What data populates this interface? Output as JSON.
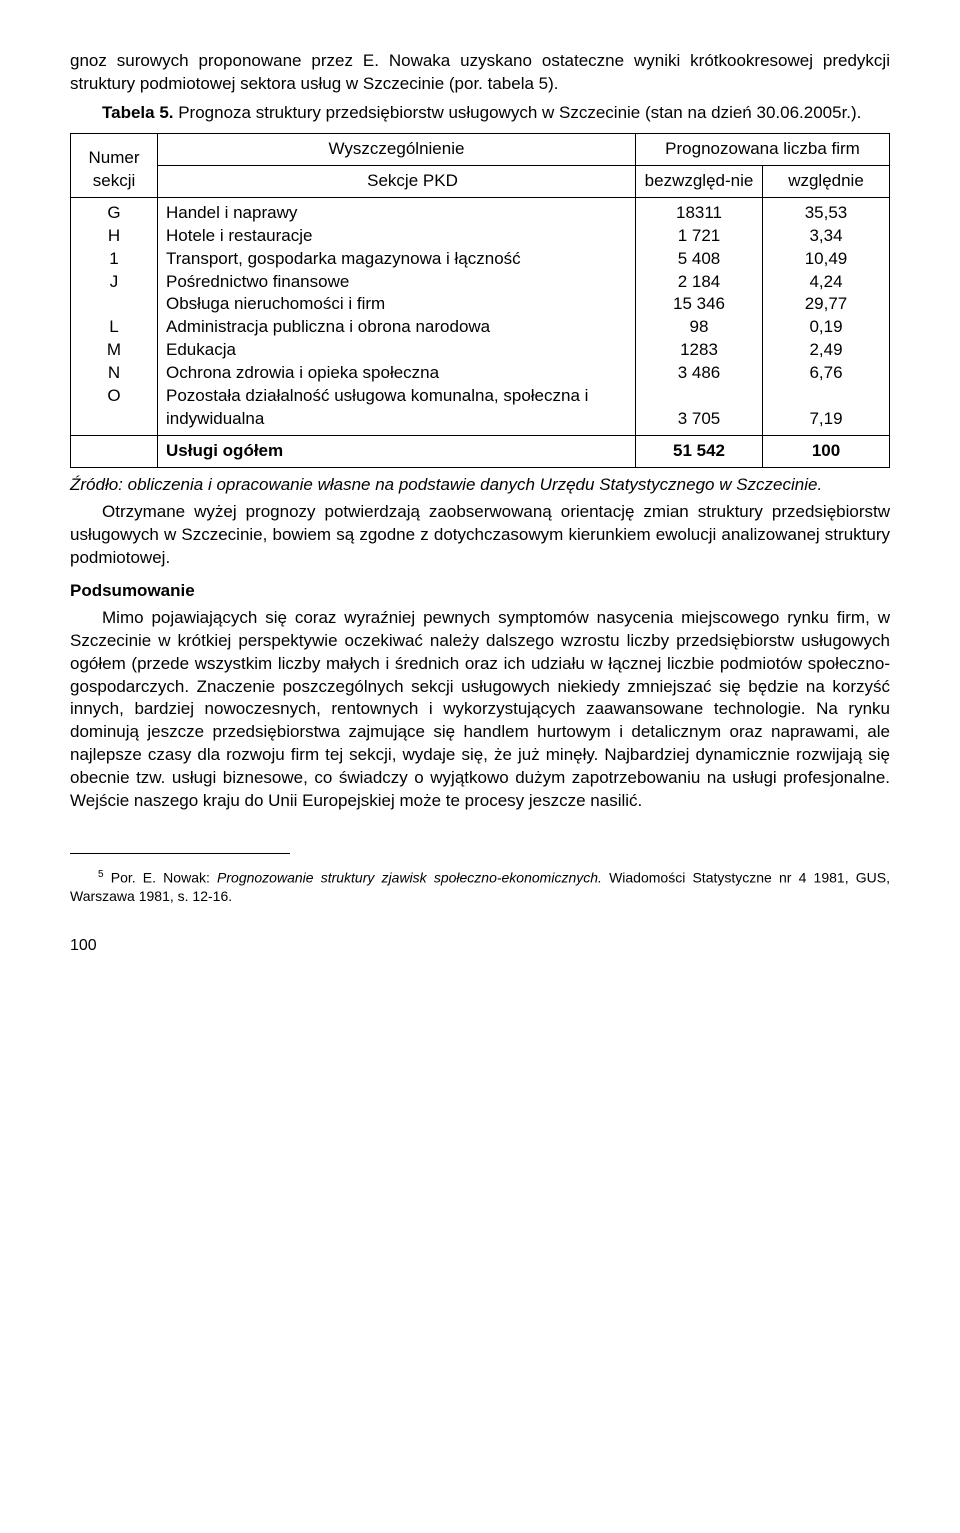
{
  "intro_para": "gnoz surowych proponowane przez E. Nowaka uzyskano ostateczne wyniki krótkookresowej predykcji struktury podmiotowej sektora usług w Szczecinie (por. tabela 5).",
  "table_title_prefix": "Tabela 5. ",
  "table_title_rest": "Prognoza struktury przedsiębiorstw usługowych w Szczecinie (stan na dzień 30.06.2005r.).",
  "headers": {
    "wyszczegolnienie": "Wyszczególnienie",
    "prognozowana": "Prognozowana liczba firm",
    "numer_sekcji": "Numer sekcji",
    "sekcje_pkd": "Sekcje PKD",
    "bezwzglednie": "bezwzględ-nie",
    "wzglednie": "względnie"
  },
  "body_codes": "G\nH\n1\nJ\n\nL\nM\nN\nO",
  "body_desc": "Handel i naprawy\nHotele i restauracje\nTransport, gospodarka magazynowa i łączność\nPośrednictwo finansowe\nObsługa nieruchomości i firm\nAdministracja publiczna i obrona narodowa\nEdukacja\nOchrona zdrowia i opieka społeczna\nPozostała działalność usługowa komunalna, społeczna i indywidualna",
  "body_abs": "18311\n1 721\n5 408\n2 184\n15 346\n98\n1283\n3 486\n\n3 705",
  "body_rel": "35,53\n3,34\n10,49\n4,24\n29,77\n0,19\n2,49\n6,76\n\n7,19",
  "total_label": "Usługi ogółem",
  "total_abs": "51 542",
  "total_rel": "100",
  "source_text": "Źródło: obliczenia i opracowanie własne na podstawie danych Urzędu Statystycznego w Szczecinie.",
  "after_table_para": "Otrzymane wyżej prognozy potwierdzają zaobserwowaną orientację zmian struktury przedsiębiorstw usługowych w Szczecinie, bowiem są zgodne z dotychczasowym kierunkiem ewolucji analizowanej struktury podmiotowej.",
  "podsumowanie_head": "Podsumowanie",
  "podsumowanie_body": "Mimo pojawiających się coraz wyraźniej pewnych symptomów nasycenia miejscowego rynku firm, w Szczecinie w krótkiej perspektywie oczekiwać należy dalszego wzrostu liczby przedsiębiorstw usługowych ogółem (przede wszystkim liczby małych i średnich oraz ich udziału w łącznej liczbie podmiotów społeczno-gospodarczych. Znaczenie poszczególnych sekcji usługowych niekiedy zmniejszać się będzie na korzyść innych, bardziej nowoczesnych, rentownych i wykorzystujących zaawansowane technologie. Na rynku dominują jeszcze przedsiębiorstwa zajmujące się handlem hurtowym i detalicznym oraz naprawami, ale najlepsze czasy dla rozwoju firm tej sekcji, wydaje się, że już minęły. Najbardziej dynamicznie rozwijają się obecnie tzw. usługi biznesowe, co świadczy o wyjątkowo dużym zapotrzebowaniu na usługi profesjonalne. Wejście naszego kraju do Unii Europejskiej może te procesy jeszcze nasilić.",
  "footnote_marker": "5",
  "footnote_prefix": " Por. E. Nowak: ",
  "footnote_italic": "Prognozowanie struktury zjawisk społeczno-ekonomicznych.",
  "footnote_suffix": " Wiadomości Statystyczne nr 4 1981, GUS, Warszawa 1981, s. 12-16.",
  "page_number": "100"
}
